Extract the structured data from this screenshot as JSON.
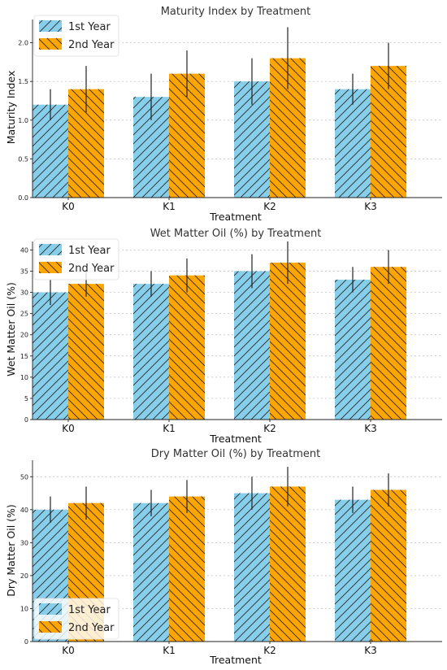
{
  "colors": {
    "year1": "#87ceeb",
    "year2": "#ffa500",
    "hatch": "#222222",
    "error_bar": "#222222"
  },
  "chart_data": [
    {
      "type": "bar",
      "title": "Maturity Index by Treatment",
      "xlabel": "Treatment",
      "ylabel": "Maturity Index",
      "categories": [
        "K0",
        "K1",
        "K2",
        "K3"
      ],
      "series": [
        {
          "name": "1st Year",
          "values": [
            1.2,
            1.3,
            1.5,
            1.4
          ],
          "errors": [
            0.2,
            0.3,
            0.3,
            0.2
          ]
        },
        {
          "name": "2nd Year",
          "values": [
            1.4,
            1.6,
            1.8,
            1.7
          ],
          "errors": [
            0.3,
            0.3,
            0.4,
            0.3
          ]
        }
      ],
      "ylim": [
        0,
        2.3
      ],
      "yticks": [
        0.0,
        0.5,
        1.0,
        1.5,
        2.0
      ],
      "ytick_labels": [
        "0.0",
        "0.5",
        "1.0",
        "1.5",
        "2.0"
      ],
      "grid": true,
      "legend": "top-left"
    },
    {
      "type": "bar",
      "title": "Wet Matter Oil (%) by Treatment",
      "xlabel": "Treatment",
      "ylabel": "Wet Matter Oil (%)",
      "categories": [
        "K0",
        "K1",
        "K2",
        "K3"
      ],
      "series": [
        {
          "name": "1st Year",
          "values": [
            30,
            32,
            35,
            33
          ],
          "errors": [
            3,
            3,
            4,
            3
          ]
        },
        {
          "name": "2nd Year",
          "values": [
            32,
            34,
            37,
            36
          ],
          "errors": [
            3,
            4,
            5,
            4
          ]
        }
      ],
      "ylim": [
        0,
        42
      ],
      "yticks": [
        0,
        5,
        10,
        15,
        20,
        25,
        30,
        35,
        40
      ],
      "ytick_labels": [
        "0",
        "5",
        "10",
        "15",
        "20",
        "25",
        "30",
        "35",
        "40"
      ],
      "grid": true,
      "legend": "top-left"
    },
    {
      "type": "bar",
      "title": "Dry Matter Oil (%) by Treatment",
      "xlabel": "Treatment",
      "ylabel": "Dry Matter Oil (%)",
      "categories": [
        "K0",
        "K1",
        "K2",
        "K3"
      ],
      "series": [
        {
          "name": "1st Year",
          "values": [
            40,
            42,
            45,
            43
          ],
          "errors": [
            4,
            4,
            5,
            4
          ]
        },
        {
          "name": "2nd Year",
          "values": [
            42,
            44,
            47,
            46
          ],
          "errors": [
            5,
            5,
            6,
            5
          ]
        }
      ],
      "ylim": [
        0,
        55
      ],
      "yticks": [
        0,
        10,
        20,
        30,
        40,
        50
      ],
      "ytick_labels": [
        "0",
        "10",
        "20",
        "30",
        "40",
        "50"
      ],
      "grid": true,
      "legend": "bottom-left"
    }
  ]
}
